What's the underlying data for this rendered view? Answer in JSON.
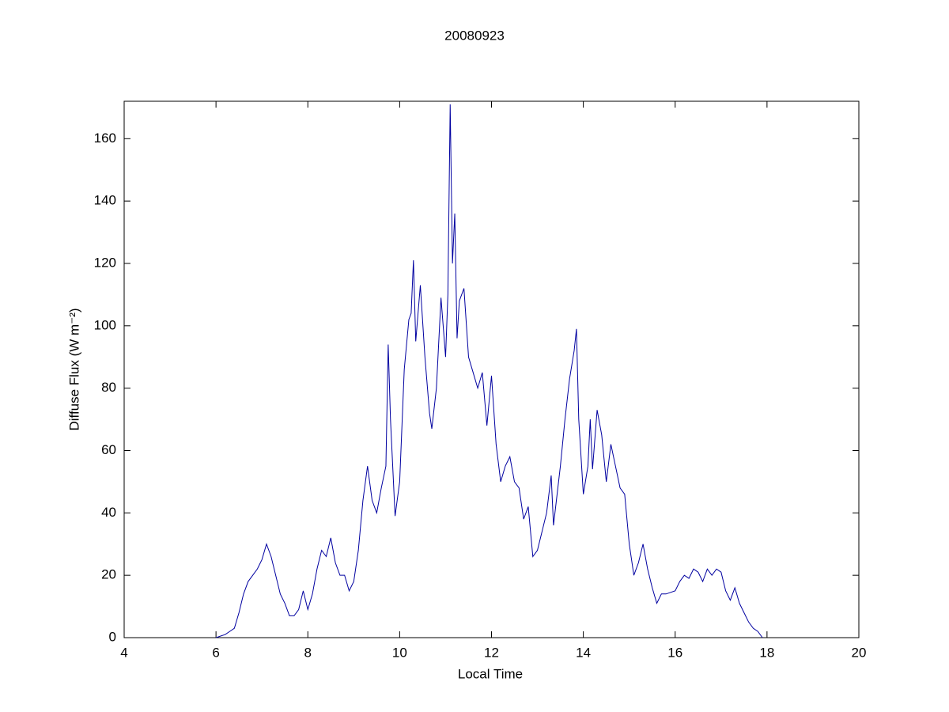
{
  "chart_data": {
    "type": "line",
    "title": "20080923",
    "xlabel": "Local Time",
    "ylabel": "Diffuse Flux (W m⁻²)",
    "xlim": [
      4,
      20
    ],
    "xticks": [
      4,
      6,
      8,
      10,
      12,
      14,
      16,
      18,
      20
    ],
    "ylim": [
      0,
      172
    ],
    "yticks": [
      0,
      20,
      40,
      60,
      80,
      100,
      120,
      140,
      160
    ],
    "grid": false,
    "x": [
      6.0,
      6.2,
      6.3,
      6.4,
      6.5,
      6.6,
      6.7,
      6.8,
      6.9,
      7.0,
      7.1,
      7.2,
      7.3,
      7.4,
      7.5,
      7.6,
      7.7,
      7.8,
      7.9,
      8.0,
      8.1,
      8.2,
      8.3,
      8.4,
      8.5,
      8.6,
      8.7,
      8.8,
      8.9,
      9.0,
      9.1,
      9.2,
      9.3,
      9.4,
      9.5,
      9.6,
      9.7,
      9.75,
      9.8,
      9.9,
      10.0,
      10.1,
      10.2,
      10.25,
      10.3,
      10.35,
      10.45,
      10.55,
      10.65,
      10.7,
      10.8,
      10.9,
      11.0,
      11.05,
      11.1,
      11.15,
      11.2,
      11.25,
      11.3,
      11.4,
      11.5,
      11.6,
      11.7,
      11.8,
      11.9,
      12.0,
      12.1,
      12.2,
      12.3,
      12.4,
      12.5,
      12.6,
      12.7,
      12.8,
      12.9,
      13.0,
      13.1,
      13.2,
      13.3,
      13.35,
      13.5,
      13.6,
      13.7,
      13.8,
      13.85,
      13.9,
      14.0,
      14.1,
      14.15,
      14.2,
      14.3,
      14.4,
      14.5,
      14.6,
      14.7,
      14.8,
      14.9,
      15.0,
      15.1,
      15.2,
      15.3,
      15.4,
      15.5,
      15.6,
      15.7,
      15.8,
      16.0,
      16.1,
      16.2,
      16.3,
      16.4,
      16.5,
      16.6,
      16.7,
      16.8,
      16.9,
      17.0,
      17.1,
      17.2,
      17.3,
      17.4,
      17.5,
      17.6,
      17.7,
      17.8,
      17.9
    ],
    "series": [
      {
        "name": "Diffuse Flux",
        "color": "#0000a0",
        "values": [
          0,
          1,
          2,
          3,
          8,
          14,
          18,
          20,
          22,
          25,
          30,
          26,
          20,
          14,
          11,
          7,
          7,
          9,
          15,
          9,
          14,
          22,
          28,
          26,
          32,
          24,
          20,
          20,
          15,
          18,
          28,
          44,
          55,
          44,
          40,
          48,
          55,
          94,
          70,
          39,
          50,
          86,
          102,
          104,
          121,
          95,
          113,
          90,
          72,
          67,
          80,
          109,
          90,
          110,
          171,
          120,
          136,
          96,
          108,
          112,
          90,
          85,
          80,
          85,
          68,
          84,
          62,
          50,
          55,
          58,
          50,
          48,
          38,
          42,
          26,
          28,
          34,
          40,
          52,
          36,
          55,
          70,
          83,
          92,
          99,
          70,
          46,
          55,
          70,
          54,
          73,
          65,
          50,
          62,
          55,
          48,
          46,
          30,
          20,
          24,
          30,
          22,
          16,
          11,
          14,
          14,
          15,
          18,
          20,
          19,
          22,
          21,
          18,
          22,
          20,
          22,
          21,
          15,
          12,
          16,
          11,
          8,
          5,
          3,
          2,
          0
        ]
      }
    ]
  }
}
